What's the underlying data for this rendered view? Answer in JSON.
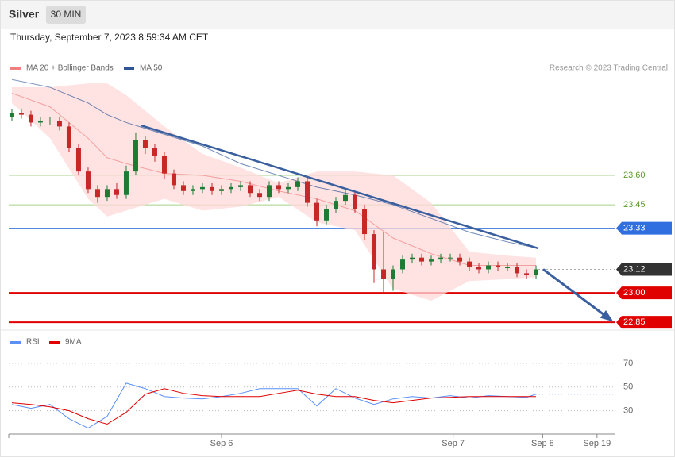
{
  "header": {
    "title": "Silver",
    "timeframe": "30 MIN",
    "timestamp": "Thursday, September 7, 2023 8:59:34 AM CET"
  },
  "chart_data": [
    {
      "type": "candlestick",
      "credit": "Research © 2023 Trading Central",
      "up_color": "#1e7b34",
      "down_color": "#c62828",
      "open": [
        23.9,
        23.92,
        23.91,
        23.87,
        23.88,
        23.88,
        23.85,
        23.74,
        23.62,
        23.53,
        23.49,
        23.53,
        23.5,
        23.62,
        23.78,
        23.74,
        23.7,
        23.61,
        23.55,
        23.52,
        23.53,
        23.54,
        23.52,
        23.53,
        23.54,
        23.55,
        23.51,
        23.49,
        23.55,
        23.53,
        23.54,
        23.57,
        23.46,
        23.37,
        23.43,
        23.47,
        23.5,
        23.43,
        23.3,
        23.12,
        23.07,
        23.12,
        23.17,
        23.18,
        23.16,
        23.17,
        23.18,
        23.18,
        23.16,
        23.13,
        23.12,
        23.14,
        23.13,
        23.13,
        23.1,
        23.09
      ],
      "high": [
        23.94,
        23.94,
        23.93,
        23.9,
        23.9,
        23.9,
        23.87,
        23.76,
        23.64,
        23.55,
        23.55,
        23.56,
        23.65,
        23.82,
        23.8,
        23.76,
        23.72,
        23.63,
        23.57,
        23.55,
        23.56,
        23.56,
        23.55,
        23.56,
        23.57,
        23.57,
        23.53,
        23.57,
        23.57,
        23.56,
        23.59,
        23.59,
        23.48,
        23.45,
        23.49,
        23.53,
        23.52,
        23.45,
        23.32,
        23.31,
        23.14,
        23.19,
        23.2,
        23.2,
        23.19,
        23.2,
        23.2,
        23.2,
        23.18,
        23.15,
        23.16,
        23.16,
        23.15,
        23.15,
        23.12,
        23.14
      ],
      "low": [
        23.88,
        23.89,
        23.85,
        23.85,
        23.86,
        23.83,
        23.72,
        23.6,
        23.51,
        23.46,
        23.47,
        23.48,
        23.48,
        23.6,
        23.71,
        23.67,
        23.58,
        23.53,
        23.5,
        23.5,
        23.51,
        23.5,
        23.5,
        23.51,
        23.52,
        23.49,
        23.47,
        23.47,
        23.51,
        23.51,
        23.52,
        23.44,
        23.34,
        23.35,
        23.41,
        23.45,
        23.41,
        23.27,
        23.05,
        23.0,
        23.01,
        23.1,
        23.15,
        23.14,
        23.14,
        23.15,
        23.16,
        23.14,
        23.11,
        23.1,
        23.1,
        23.11,
        23.11,
        23.08,
        23.07,
        23.07
      ],
      "close": [
        23.92,
        23.91,
        23.87,
        23.88,
        23.88,
        23.85,
        23.74,
        23.62,
        23.53,
        23.49,
        23.53,
        23.5,
        23.62,
        23.78,
        23.74,
        23.7,
        23.61,
        23.55,
        23.52,
        23.53,
        23.54,
        23.52,
        23.53,
        23.54,
        23.55,
        23.51,
        23.49,
        23.55,
        23.53,
        23.54,
        23.57,
        23.46,
        23.37,
        23.43,
        23.47,
        23.5,
        23.43,
        23.3,
        23.12,
        23.07,
        23.12,
        23.17,
        23.18,
        23.16,
        23.17,
        23.18,
        23.18,
        23.16,
        23.13,
        23.12,
        23.14,
        23.13,
        23.13,
        23.1,
        23.09,
        23.12
      ],
      "series": [
        {
          "name": "MA 20 + Bollinger Bands",
          "color": "#f08080",
          "band_color": "#ffdada",
          "x": [
            0,
            4,
            8,
            10,
            12,
            16,
            20,
            24,
            28,
            32,
            36,
            40,
            44,
            48,
            52,
            55
          ],
          "values": [
            24.02,
            23.95,
            23.79,
            23.69,
            23.66,
            23.61,
            23.6,
            23.57,
            23.52,
            23.48,
            23.42,
            23.28,
            23.2,
            23.14,
            23.14,
            23.14
          ],
          "upper": [
            24.05,
            24.05,
            24.07,
            24.07,
            24.01,
            23.85,
            23.71,
            23.64,
            23.56,
            23.62,
            23.62,
            23.6,
            23.46,
            23.21,
            23.19,
            23.18
          ],
          "lower": [
            23.97,
            23.79,
            23.48,
            23.39,
            23.42,
            23.48,
            23.42,
            23.44,
            23.49,
            23.36,
            23.32,
            23.02,
            22.96,
            23.06,
            23.07,
            23.08
          ]
        },
        {
          "name": "MA 50",
          "color": "#2f5597",
          "x": [
            0,
            4,
            8,
            10,
            12,
            16,
            20,
            24,
            28,
            32,
            36,
            40,
            44,
            48,
            52,
            55
          ],
          "values": [
            24.09,
            24.05,
            23.97,
            23.91,
            23.87,
            23.81,
            23.75,
            23.66,
            23.6,
            23.54,
            23.5,
            23.45,
            23.38,
            23.31,
            23.26,
            23.23
          ]
        }
      ],
      "levels": [
        {
          "value": 23.6,
          "label": "23.60",
          "color": "#5b9a2a",
          "line_color": "#a8d08d",
          "tag": false
        },
        {
          "value": 23.45,
          "color": "#5b9a2a",
          "line_color": "#a8d08d",
          "tag": false
        },
        {
          "value": 23.33,
          "color": "#2f6fe0",
          "line_color": "#3c78d8",
          "tag": true
        },
        {
          "value": 23.12,
          "color": "#333333",
          "line_color": "#aaaaaa",
          "tag": true,
          "dotted": true
        },
        {
          "value": 23.0,
          "label": "23.00",
          "color": "#e00000",
          "line_color": "#e00000",
          "tag": true,
          "bold": true
        },
        {
          "value": 22.85,
          "color": "#e00000",
          "line_color": "#e00000",
          "tag": true,
          "bold": true
        }
      ],
      "trend_line": {
        "x": [
          13.58,
          55.25
        ],
        "y": [
          23.855,
          23.227
        ],
        "color": "#3a5f9e"
      },
      "forecast_arrow": {
        "x": [
          55.75,
          62.9
        ],
        "y": [
          23.12,
          22.86
        ],
        "color": "#3a5f9e"
      },
      "xlim": [
        -0.33,
        63.33
      ],
      "ylim": [
        22.826,
        24.111
      ]
    },
    {
      "type": "line",
      "series": [
        {
          "name": "RSI",
          "color": "#5b8ff9",
          "x": [
            0,
            2,
            4,
            6,
            8,
            10,
            12,
            14,
            16,
            18,
            20,
            22,
            24,
            26,
            28,
            30,
            32,
            34,
            36,
            38,
            40,
            42,
            44,
            46,
            48,
            50,
            52,
            54,
            55
          ],
          "values": [
            35.3,
            32,
            35.3,
            23.3,
            15.3,
            25.3,
            53.3,
            48.7,
            42,
            40.7,
            40,
            42,
            44.7,
            48.7,
            48.7,
            48.7,
            34,
            48.7,
            40.7,
            35.3,
            40,
            42,
            40.7,
            42.7,
            40.7,
            42.7,
            42,
            41.3,
            44
          ]
        },
        {
          "name": "9MA",
          "color": "#e00000",
          "x": [
            0,
            2,
            4,
            6,
            8,
            10,
            12,
            14,
            16,
            18,
            20,
            22,
            24,
            26,
            28,
            30,
            32,
            34,
            36,
            38,
            40,
            42,
            44,
            46,
            48,
            50,
            52,
            54,
            55
          ],
          "values": [
            36.7,
            35.3,
            33.3,
            30,
            23.3,
            18.7,
            28.7,
            44,
            48.7,
            44.7,
            42.7,
            42,
            42,
            42,
            44.7,
            47.3,
            44,
            42,
            42,
            38.7,
            36.7,
            38.7,
            40.7,
            41.3,
            42,
            42,
            42,
            42,
            42
          ]
        }
      ],
      "xlim": [
        -0.33,
        63.33
      ],
      "ylim": [
        11,
        82
      ],
      "yticks": [
        30,
        50,
        70
      ],
      "xticks": [
        {
          "value": 22,
          "label": "Sep 6"
        },
        {
          "value": 46.3,
          "label": "Sep 7"
        },
        {
          "value": 55.7,
          "label": "Sep 8"
        },
        {
          "value": 61.4,
          "label": "Sep 19"
        }
      ]
    }
  ]
}
